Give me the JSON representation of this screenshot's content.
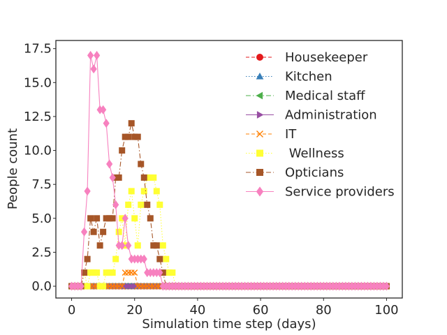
{
  "chart_data": {
    "type": "line",
    "title": "",
    "xlabel": "Simulation time step (days)",
    "ylabel": "People count",
    "xlim": [
      -5,
      105
    ],
    "ylim": [
      -0.87,
      18.1
    ],
    "x_ticks": [
      0,
      20,
      40,
      60,
      80,
      100
    ],
    "x_tick_labels": [
      "0",
      "20",
      "40",
      "60",
      "80",
      "100"
    ],
    "y_ticks": [
      0,
      2.5,
      5,
      7.5,
      10,
      12.5,
      15,
      17.5
    ],
    "y_tick_labels": [
      "0.0",
      "2.5",
      "5.0",
      "7.5",
      "10.0",
      "12.5",
      "15.0",
      "17.5"
    ],
    "grid": false,
    "legend_position": "upper-right",
    "x_range": [
      0,
      100
    ],
    "series": [
      {
        "name": "Housekeeper",
        "color": "#e41a1c",
        "linestyle": "dashed",
        "marker": "circle",
        "default": 0,
        "points": []
      },
      {
        "name": "Kitchen",
        "color": "#377eb8",
        "linestyle": "dotted",
        "marker": "triangle-up",
        "default": 0,
        "points": []
      },
      {
        "name": "Medical staff",
        "color": "#4daf4a",
        "linestyle": "dashdot",
        "marker": "triangle-left",
        "default": 0,
        "points": []
      },
      {
        "name": "Administration",
        "color": "#984ea3",
        "linestyle": "solid",
        "marker": "triangle-right",
        "default": 0,
        "points": []
      },
      {
        "name": "IT",
        "color": "#ff7f00",
        "linestyle": "dashed",
        "marker": "x",
        "default": 0,
        "points": [
          [
            17,
            1
          ],
          [
            18,
            1
          ],
          [
            19,
            1
          ],
          [
            20,
            1
          ]
        ]
      },
      {
        "name": " Wellness",
        "color": "#ffff33",
        "linestyle": "dotted",
        "marker": "square",
        "default": 0,
        "points": [
          [
            4,
            1
          ],
          [
            5,
            0
          ],
          [
            6,
            1
          ],
          [
            7,
            1
          ],
          [
            8,
            1
          ],
          [
            9,
            0
          ],
          [
            10,
            0
          ],
          [
            11,
            1
          ],
          [
            12,
            1
          ],
          [
            13,
            1
          ],
          [
            14,
            2
          ],
          [
            15,
            4
          ],
          [
            16,
            5
          ],
          [
            17,
            3
          ],
          [
            18,
            6
          ],
          [
            19,
            7
          ],
          [
            20,
            5
          ],
          [
            21,
            3
          ],
          [
            22,
            6
          ],
          [
            23,
            7
          ],
          [
            24,
            8
          ],
          [
            25,
            8
          ],
          [
            26,
            8
          ],
          [
            27,
            7
          ],
          [
            28,
            6
          ],
          [
            29,
            3
          ],
          [
            30,
            2
          ],
          [
            31,
            1
          ],
          [
            32,
            1
          ],
          [
            33,
            0
          ]
        ]
      },
      {
        "name": "Opticians",
        "color": "#a65628",
        "linestyle": "dashdot",
        "marker": "square",
        "default": 0,
        "points": [
          [
            3,
            0
          ],
          [
            4,
            1
          ],
          [
            5,
            2
          ],
          [
            6,
            5
          ],
          [
            7,
            4
          ],
          [
            8,
            5
          ],
          [
            9,
            3
          ],
          [
            10,
            4
          ],
          [
            11,
            5
          ],
          [
            12,
            5
          ],
          [
            13,
            5
          ],
          [
            14,
            8
          ],
          [
            15,
            8
          ],
          [
            16,
            10
          ],
          [
            17,
            11
          ],
          [
            18,
            11
          ],
          [
            19,
            12
          ],
          [
            20,
            11
          ],
          [
            21,
            11
          ],
          [
            22,
            9
          ],
          [
            23,
            8
          ],
          [
            24,
            6
          ],
          [
            25,
            5
          ],
          [
            26,
            3
          ],
          [
            27,
            3
          ],
          [
            28,
            2
          ],
          [
            29,
            1
          ],
          [
            30,
            0
          ]
        ]
      },
      {
        "name": "Service providers",
        "color": "#f781bf",
        "linestyle": "solid",
        "marker": "diamond",
        "default": 0,
        "points": [
          [
            3,
            0
          ],
          [
            4,
            4
          ],
          [
            5,
            7
          ],
          [
            6,
            17
          ],
          [
            7,
            16
          ],
          [
            8,
            17
          ],
          [
            9,
            13
          ],
          [
            10,
            13
          ],
          [
            11,
            12
          ],
          [
            12,
            9
          ],
          [
            13,
            8
          ],
          [
            14,
            6
          ],
          [
            15,
            3
          ],
          [
            16,
            3
          ],
          [
            17,
            5
          ],
          [
            18,
            3
          ],
          [
            19,
            2
          ],
          [
            20,
            2
          ],
          [
            21,
            2
          ],
          [
            22,
            2
          ],
          [
            23,
            2
          ],
          [
            24,
            1
          ],
          [
            25,
            1
          ],
          [
            26,
            1
          ],
          [
            27,
            1
          ],
          [
            28,
            1
          ],
          [
            29,
            0
          ]
        ]
      }
    ]
  }
}
